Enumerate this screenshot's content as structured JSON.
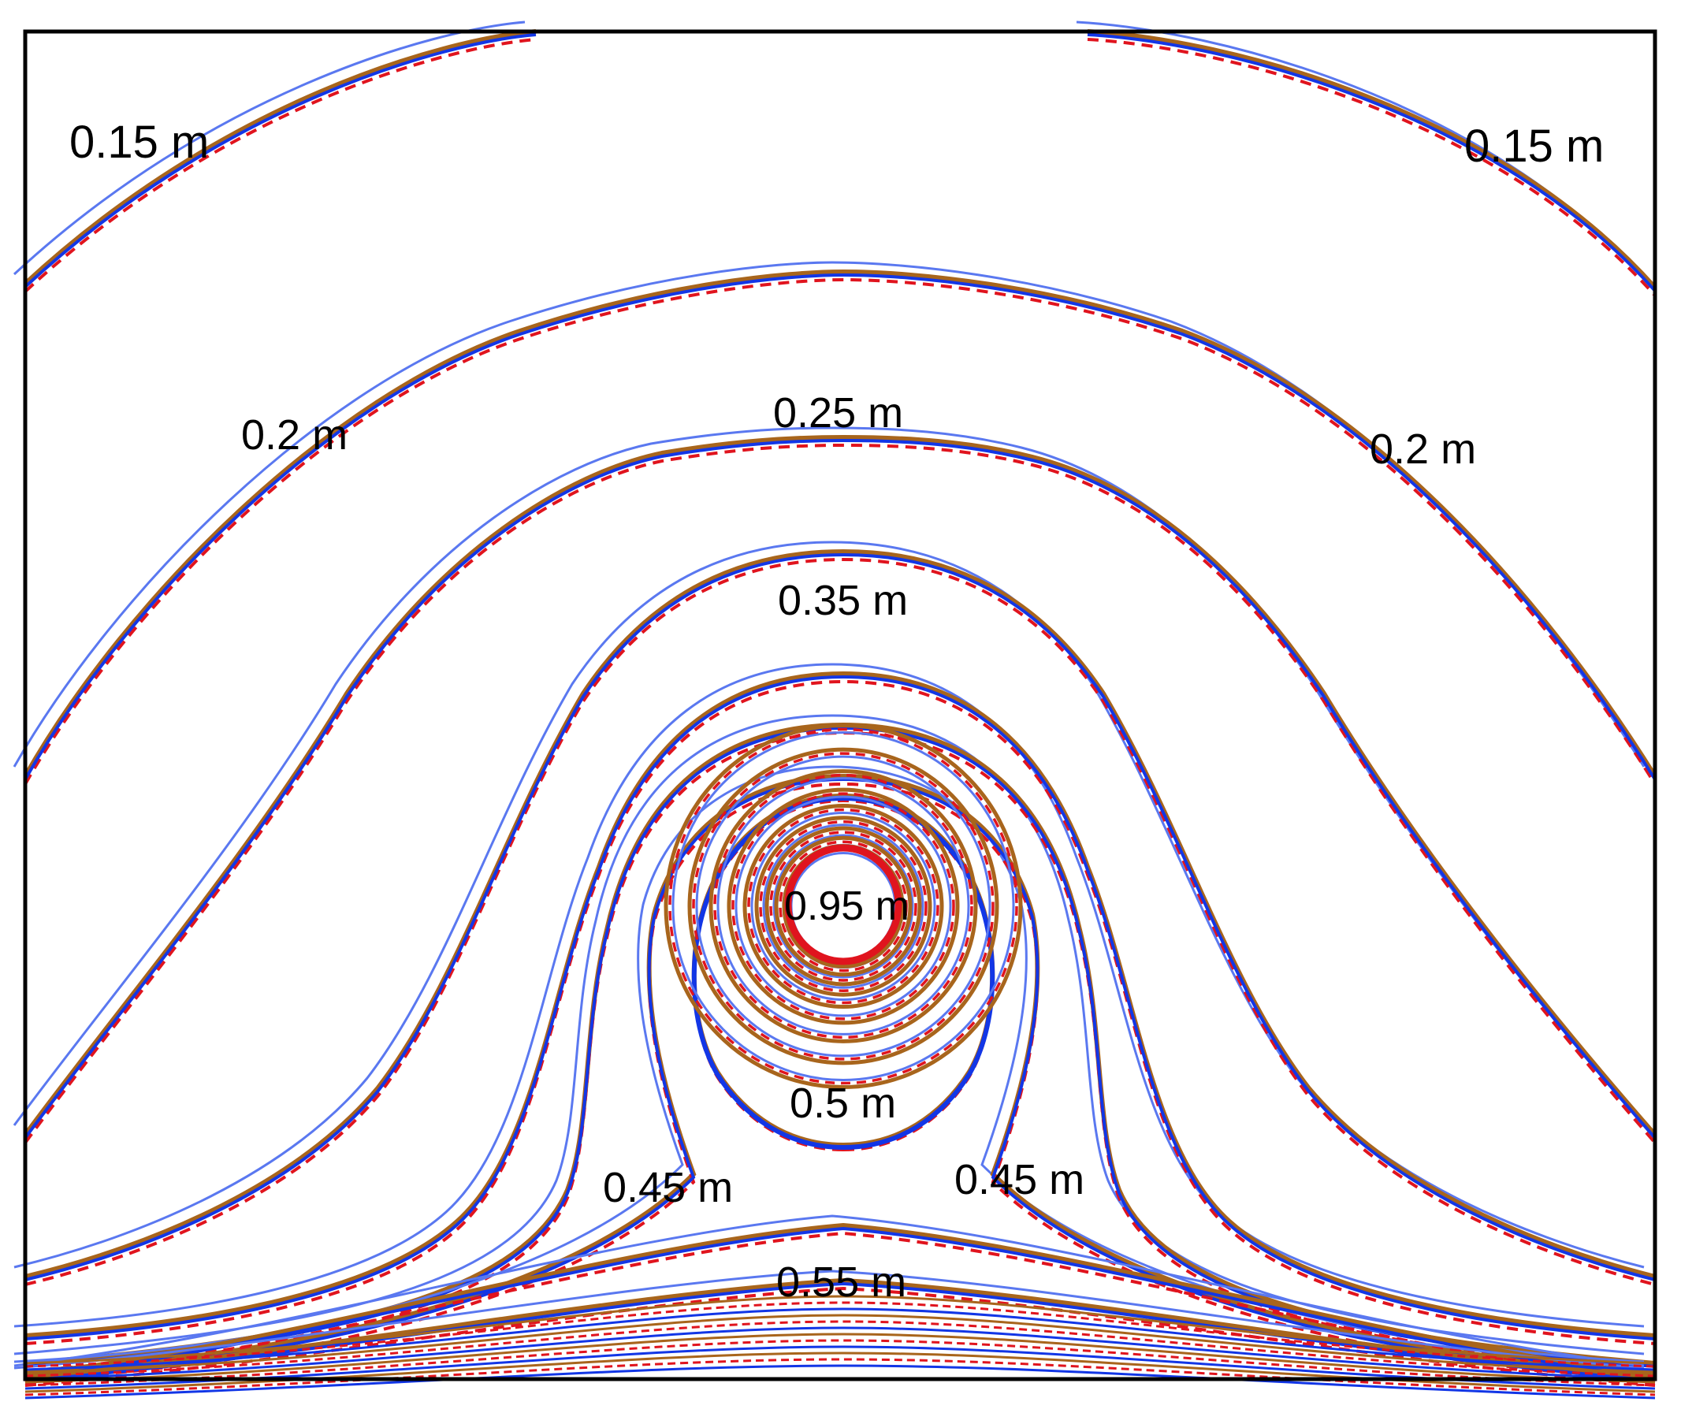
{
  "chart_data": {
    "type": "contour",
    "title": "",
    "xlabel": "",
    "ylabel": "",
    "legend": "none",
    "grid": false,
    "colors": {
      "brown_solid": "#a8651c",
      "red_dashed": "#e0141e",
      "blue_thick": "#1236e6",
      "blue_thin": "#5a78f0",
      "frame": "#000000"
    },
    "contour_labels": [
      {
        "text": "0.15 m",
        "level": 0.15,
        "side": "left"
      },
      {
        "text": "0.15 m",
        "level": 0.15,
        "side": "right"
      },
      {
        "text": "0.2 m",
        "level": 0.2,
        "side": "left"
      },
      {
        "text": "0.2 m",
        "level": 0.2,
        "side": "right"
      },
      {
        "text": "0.25 m",
        "level": 0.25,
        "side": "center"
      },
      {
        "text": "0.35 m",
        "level": 0.35,
        "side": "center"
      },
      {
        "text": "0.95 m",
        "level": 0.95,
        "side": "center"
      },
      {
        "text": "0.5 m",
        "level": 0.5,
        "side": "center"
      },
      {
        "text": "0.45 m",
        "level": 0.45,
        "side": "left"
      },
      {
        "text": "0.45 m",
        "level": 0.45,
        "side": "right"
      },
      {
        "text": "0.55 m",
        "level": 0.55,
        "side": "center"
      }
    ],
    "series": [
      {
        "style": "solid-brown",
        "levels": [
          0.15,
          0.2,
          0.25,
          0.3,
          0.35,
          0.4,
          0.45,
          0.5,
          0.55,
          0.6,
          0.65,
          0.7,
          0.75,
          0.8,
          0.85,
          0.9,
          0.95
        ]
      },
      {
        "style": "dashed-red",
        "levels": [
          0.15,
          0.2,
          0.25,
          0.3,
          0.35,
          0.4,
          0.45,
          0.5,
          0.55,
          0.6,
          0.65,
          0.7,
          0.75,
          0.8,
          0.85,
          0.9,
          0.95
        ]
      },
      {
        "style": "solid-blue",
        "levels": [
          0.15,
          0.2,
          0.25,
          0.3,
          0.35,
          0.4,
          0.45,
          0.5,
          0.55,
          0.6,
          0.65,
          0.7,
          0.75,
          0.8,
          0.85,
          0.9,
          0.95
        ]
      }
    ]
  }
}
